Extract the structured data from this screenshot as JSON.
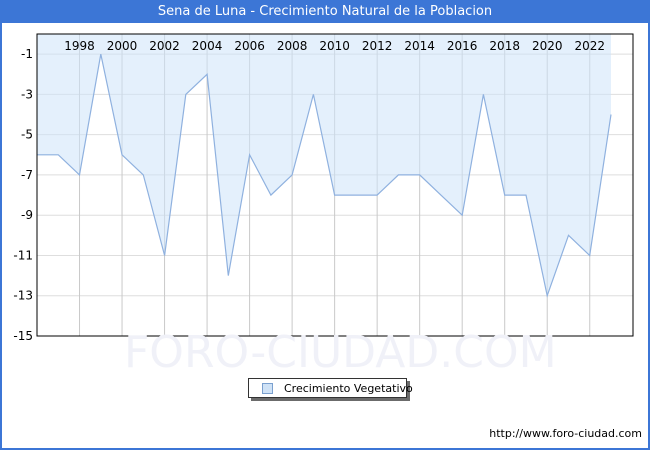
{
  "window": {
    "title": "Sena de Luna - Crecimiento Natural de la Poblacion",
    "accent_color": "#3c76d6",
    "site_url": "http://www.foro-ciudad.com"
  },
  "legend": {
    "label": "Crecimiento Vegetativo"
  },
  "watermark": "FORO-CIUDAD.COM",
  "chart_data": {
    "type": "area",
    "title": "Sena de Luna - Crecimiento Natural de la Poblacion",
    "xlabel": "",
    "ylabel": "",
    "x": [
      1996,
      1997,
      1998,
      1999,
      2000,
      2001,
      2002,
      2003,
      2004,
      2005,
      2006,
      2007,
      2008,
      2009,
      2010,
      2011,
      2012,
      2013,
      2014,
      2015,
      2016,
      2017,
      2018,
      2019,
      2020,
      2021,
      2022,
      2023
    ],
    "series": [
      {
        "name": "Crecimiento Vegetativo",
        "values": [
          -6,
          -6,
          -7,
          -1,
          -6,
          -7,
          -11,
          -3,
          -2,
          -12,
          -6,
          -8,
          -7,
          -3,
          -8,
          -8,
          -8,
          -7,
          -7,
          -8,
          -9,
          -3,
          -8,
          -8,
          -13,
          -10,
          -11,
          -4
        ]
      }
    ],
    "ylim": [
      -15,
      0
    ],
    "xticks": [
      1998,
      2000,
      2002,
      2004,
      2006,
      2008,
      2010,
      2012,
      2014,
      2016,
      2018,
      2020,
      2022
    ],
    "yticks": [
      -1,
      -3,
      -5,
      -7,
      -9,
      -11,
      -13,
      -15
    ],
    "grid": true,
    "legend_position": "bottom-center",
    "colors": {
      "fill": "rgba(205,227,250,0.55)",
      "line": "#8fb1df",
      "vgrid": "#c9c9c9",
      "hgrid": "#dedede",
      "plot_border": "#000000"
    }
  }
}
